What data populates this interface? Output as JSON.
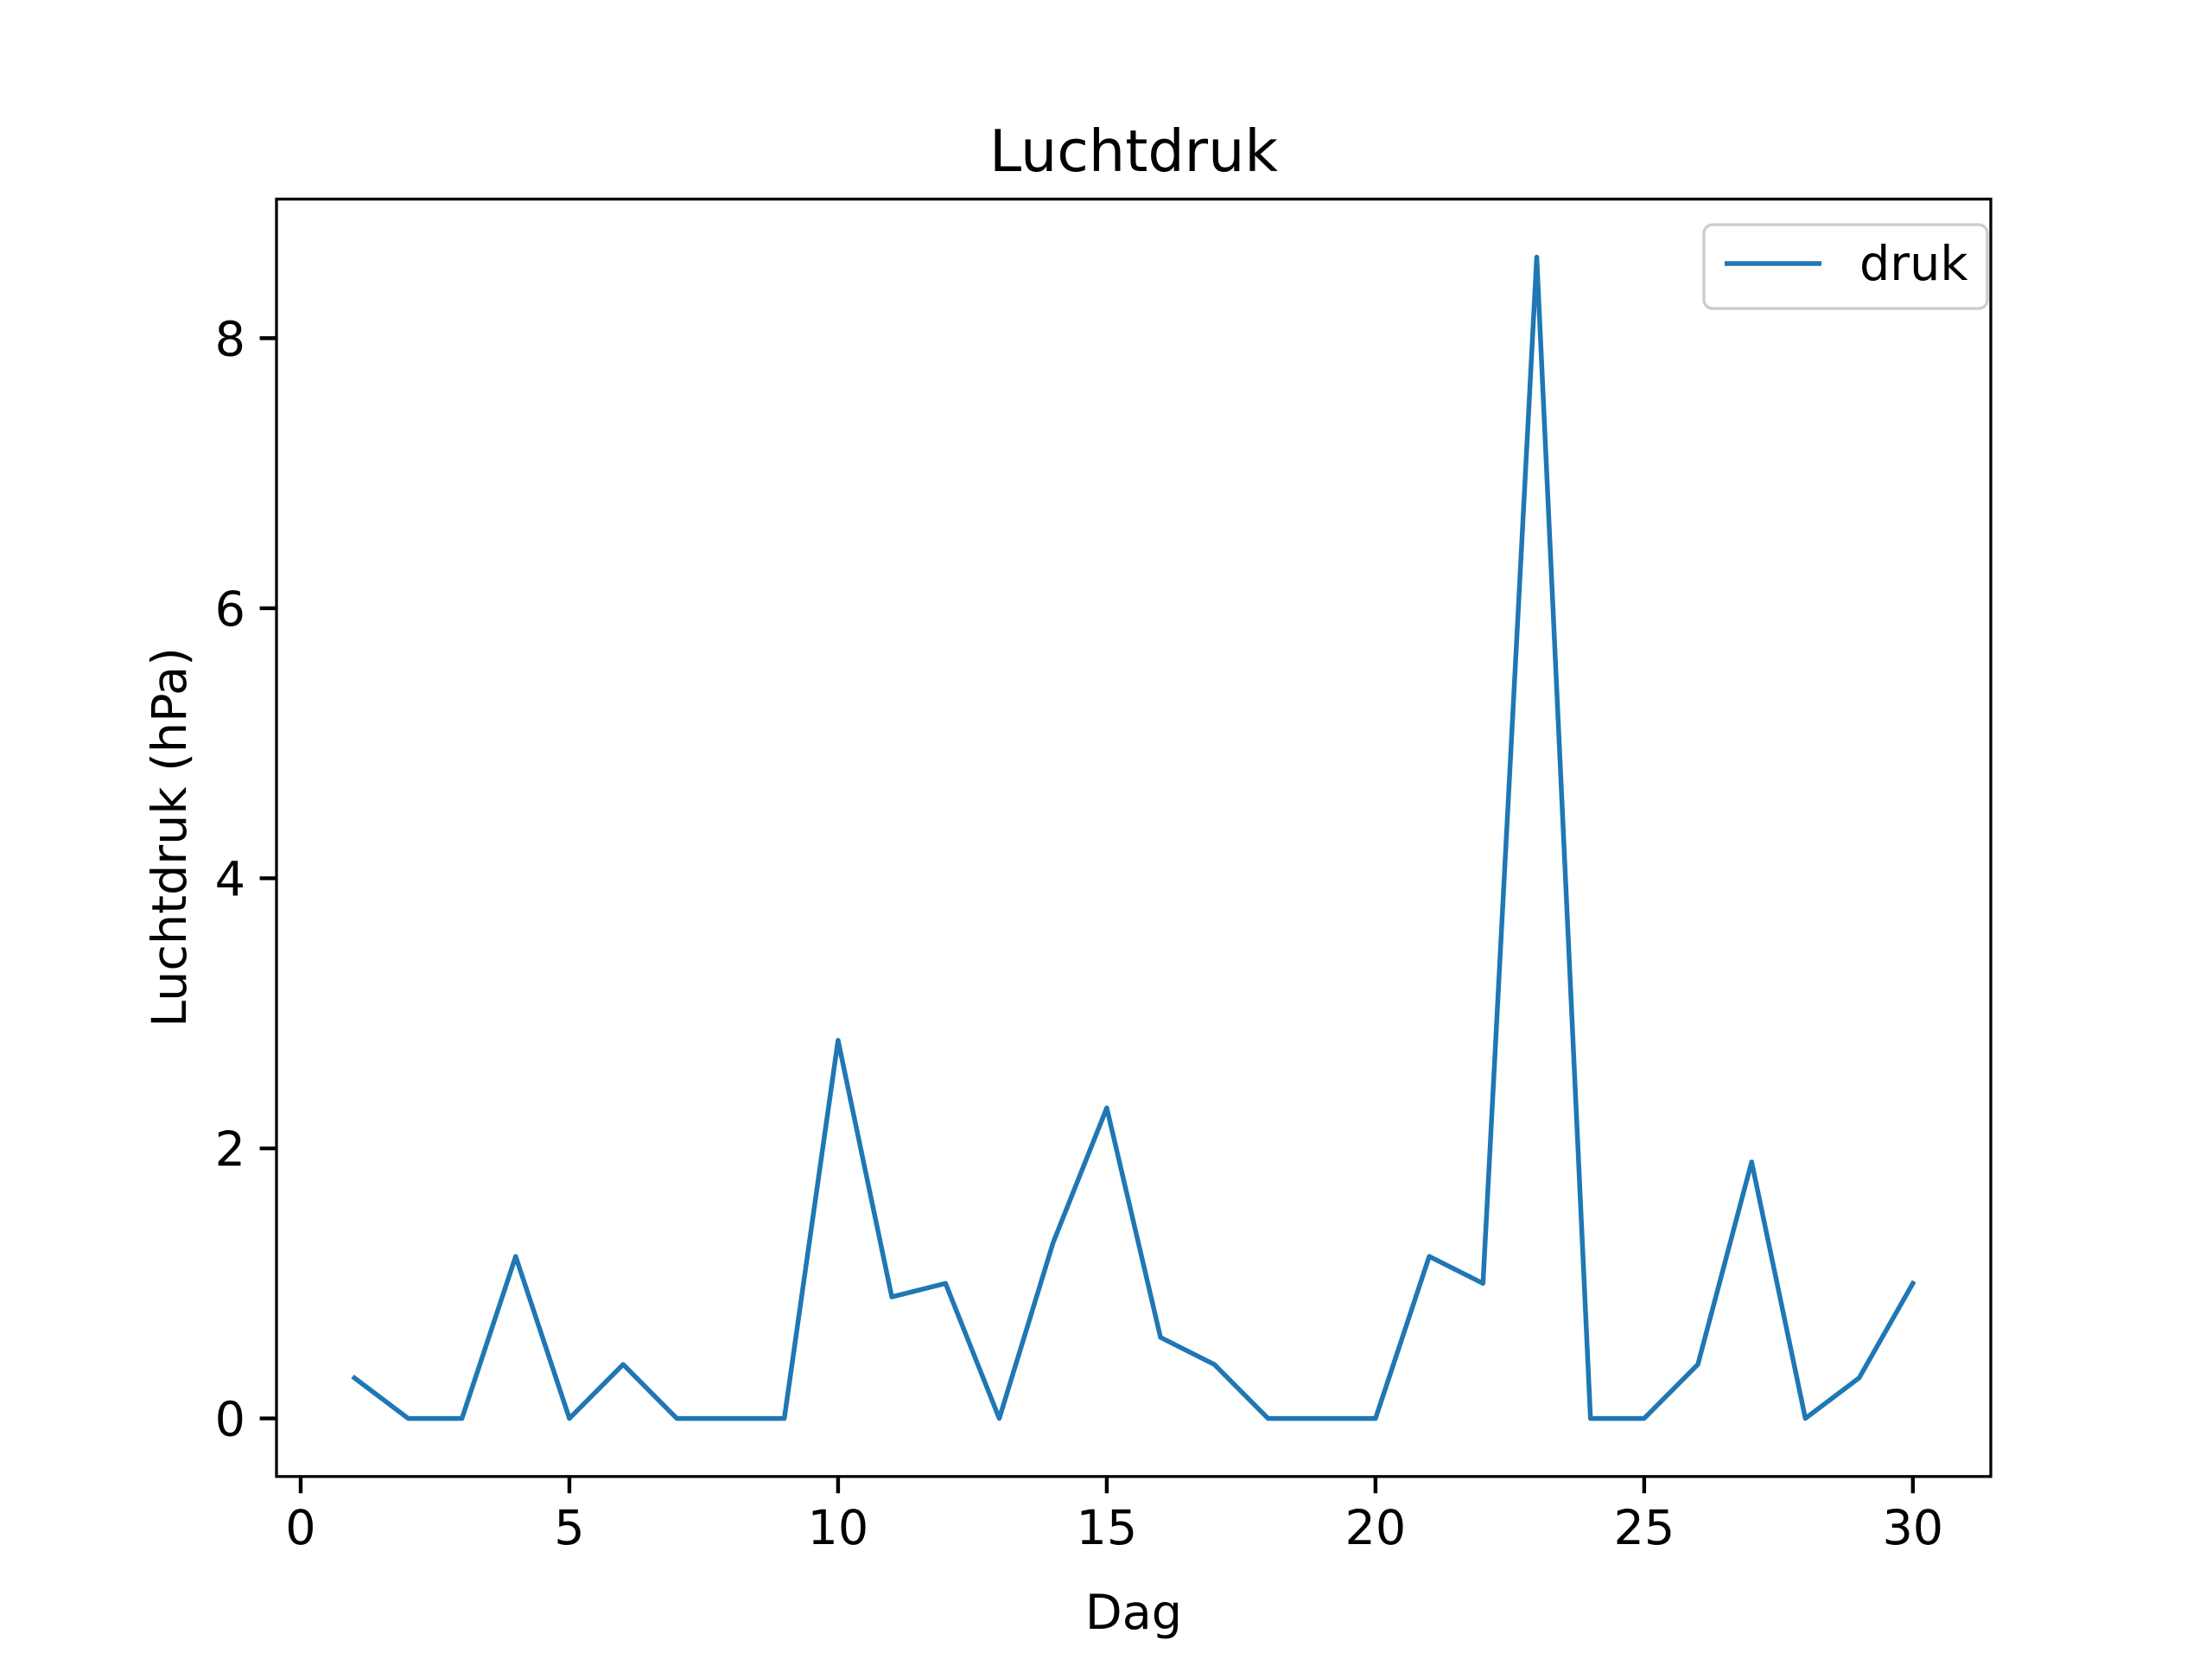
{
  "chart_data": {
    "type": "line",
    "title": "Luchtdruk",
    "xlabel": "Dag",
    "ylabel": "Luchtdruk (hPa)",
    "xlim": [
      -0.45,
      31.45
    ],
    "ylim": [
      -0.43,
      9.03
    ],
    "xticks": [
      0,
      5,
      10,
      15,
      20,
      25,
      30
    ],
    "yticks": [
      0,
      2,
      4,
      6,
      8
    ],
    "grid": false,
    "legend_position": "top-right",
    "series": [
      {
        "name": "druk",
        "color": "#1f77b4",
        "x": [
          1,
          2,
          3,
          4,
          5,
          6,
          7,
          8,
          9,
          10,
          11,
          12,
          13,
          14,
          15,
          16,
          17,
          18,
          19,
          20,
          21,
          22,
          23,
          24,
          25,
          26,
          27,
          28,
          29,
          30
        ],
        "y": [
          0.3,
          0,
          0,
          1.2,
          0,
          0.4,
          0,
          0,
          0,
          2.8,
          0.9,
          1.0,
          0,
          1.3,
          2.3,
          0.6,
          0.4,
          0,
          0,
          0,
          1.2,
          1.0,
          8.6,
          0,
          0,
          0.4,
          1.9,
          0,
          0.3,
          1.0
        ]
      }
    ]
  }
}
